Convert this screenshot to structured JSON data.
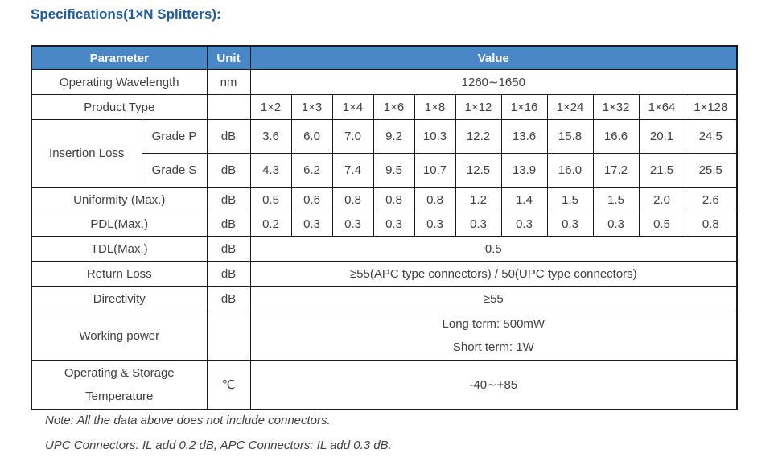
{
  "title": "Specifications(1×N Splitters):",
  "colors": {
    "header_bg": "#4a87c7",
    "header_text": "#ffffff",
    "title_text": "#1e5c9e",
    "body_text": "#404040",
    "border": "#1b1b1b"
  },
  "table": {
    "headers": {
      "parameter": "Parameter",
      "unit": "Unit",
      "value": "Value"
    },
    "product_types": [
      "1×2",
      "1×3",
      "1×4",
      "1×6",
      "1×8",
      "1×12",
      "1×16",
      "1×24",
      "1×32",
      "1×64",
      "1×128"
    ],
    "rows": {
      "operating_wavelength": {
        "label": "Operating Wavelength",
        "unit": "nm",
        "value": "1260∼1650"
      },
      "product_type": {
        "label": "Product Type",
        "unit": ""
      },
      "insertion_loss": {
        "label": "Insertion Loss",
        "grade_p": {
          "label": "Grade P",
          "unit": "dB",
          "values": [
            "3.6",
            "6.0",
            "7.0",
            "9.2",
            "10.3",
            "12.2",
            "13.6",
            "15.8",
            "16.6",
            "20.1",
            "24.5"
          ]
        },
        "grade_s": {
          "label": "Grade S",
          "unit": "dB",
          "values": [
            "4.3",
            "6.2",
            "7.4",
            "9.5",
            "10.7",
            "12.5",
            "13.9",
            "16.0",
            "17.2",
            "21.5",
            "25.5"
          ]
        }
      },
      "uniformity": {
        "label": "Uniformity (Max.)",
        "unit": "dB",
        "values": [
          "0.5",
          "0.6",
          "0.8",
          "0.8",
          "0.8",
          "1.2",
          "1.4",
          "1.5",
          "1.5",
          "2.0",
          "2.6"
        ]
      },
      "pdl": {
        "label": "PDL(Max.)",
        "unit": "dB",
        "values": [
          "0.2",
          "0.3",
          "0.3",
          "0.3",
          "0.3",
          "0.3",
          "0.3",
          "0.3",
          "0.3",
          "0.5",
          "0.8"
        ]
      },
      "tdl": {
        "label": "TDL(Max.)",
        "unit": "dB",
        "value": "0.5"
      },
      "return_loss": {
        "label": "Return Loss",
        "unit": "dB",
        "value": "≥55(APC type connectors) / 50(UPC type connectors)"
      },
      "directivity": {
        "label": "Directivity",
        "unit": "dB",
        "value": "≥55"
      },
      "working_power": {
        "label": "Working power",
        "unit": "",
        "value_line1": "Long term: 500mW",
        "value_line2": "Short term: 1W"
      },
      "temperature": {
        "label_line1": "Operating & Storage",
        "label_line2": "Temperature",
        "unit": "℃",
        "value": "-40∼+85"
      }
    }
  },
  "notes": {
    "note1": "Note: All the data above does not include connectors.",
    "note2": "UPC Connectors: IL add 0.2 dB, APC Connectors: IL add 0.3 dB."
  }
}
